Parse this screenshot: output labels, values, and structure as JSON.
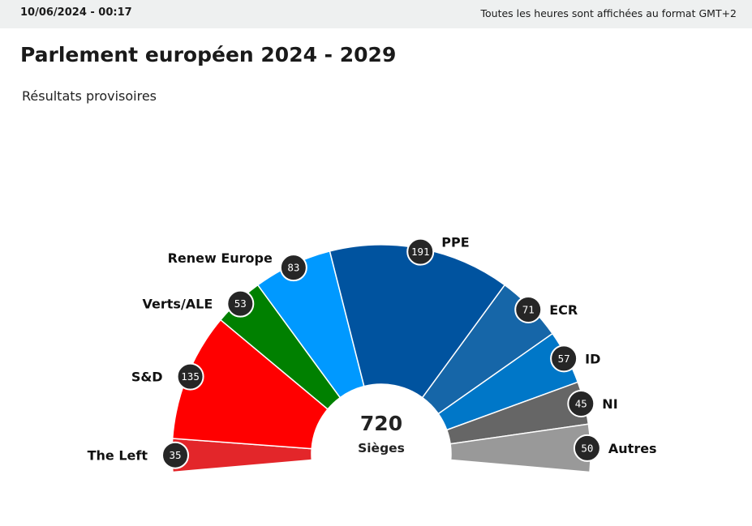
{
  "header": {
    "datetime": "10/06/2024 - 00:17",
    "timezone_note": "Toutes les heures sont affichées au format GMT+2"
  },
  "title": "Parlement européen 2024 - 2029",
  "subtitle": "Résultats provisoires",
  "chart_data": {
    "type": "pie",
    "variant": "hemicycle",
    "total": 720,
    "total_label": "Sièges",
    "series": [
      {
        "name": "The Left",
        "value": 35,
        "color": "#e3262a"
      },
      {
        "name": "S&D",
        "value": 135,
        "color": "#ff0000"
      },
      {
        "name": "Verts/ALE",
        "value": 53,
        "color": "#008000"
      },
      {
        "name": "Renew Europe",
        "value": 83,
        "color": "#0099ff"
      },
      {
        "name": "PPE",
        "value": 191,
        "color": "#00539f"
      },
      {
        "name": "ECR",
        "value": 71,
        "color": "#1666a8"
      },
      {
        "name": "ID",
        "value": 57,
        "color": "#0077c8"
      },
      {
        "name": "NI",
        "value": 45,
        "color": "#666666"
      },
      {
        "name": "Autres",
        "value": 50,
        "color": "#999999"
      }
    ]
  }
}
